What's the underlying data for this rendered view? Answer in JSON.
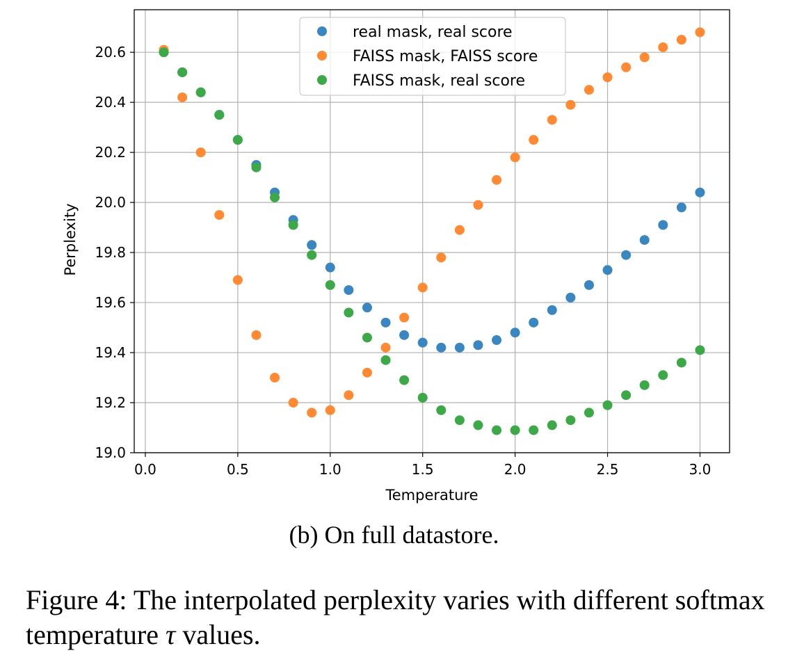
{
  "chart_data": {
    "type": "scatter",
    "title": "",
    "xlabel": "Temperature",
    "ylabel": "Perplexity",
    "xlim": [
      -0.06,
      3.16
    ],
    "ylim": [
      19.0,
      20.77
    ],
    "xticks": [
      "0.0",
      "0.5",
      "1.0",
      "1.5",
      "2.0",
      "2.5",
      "3.0"
    ],
    "xtick_values": [
      0.0,
      0.5,
      1.0,
      1.5,
      2.0,
      2.5,
      3.0
    ],
    "yticks": [
      "19.0",
      "19.2",
      "19.4",
      "19.6",
      "19.8",
      "20.0",
      "20.2",
      "20.4",
      "20.6"
    ],
    "ytick_values": [
      19.0,
      19.2,
      19.4,
      19.6,
      19.8,
      20.0,
      20.2,
      20.4,
      20.6
    ],
    "grid": true,
    "legend_position": "top-center",
    "x": [
      0.1,
      0.2,
      0.3,
      0.4,
      0.5,
      0.6,
      0.7,
      0.8,
      0.9,
      1.0,
      1.1,
      1.2,
      1.3,
      1.4,
      1.5,
      1.6,
      1.7,
      1.8,
      1.9,
      2.0,
      2.1,
      2.2,
      2.3,
      2.4,
      2.5,
      2.6,
      2.7,
      2.8,
      2.9,
      3.0
    ],
    "series": [
      {
        "name": "real mask, real score",
        "color": "#3a86c0",
        "values": [
          20.6,
          20.52,
          20.44,
          20.35,
          20.25,
          20.15,
          20.04,
          19.93,
          19.83,
          19.74,
          19.65,
          19.58,
          19.52,
          19.47,
          19.44,
          19.42,
          19.42,
          19.43,
          19.45,
          19.48,
          19.52,
          19.57,
          19.62,
          19.67,
          19.73,
          19.79,
          19.85,
          19.91,
          19.98,
          20.04
        ]
      },
      {
        "name": "FAISS mask, FAISS score",
        "color": "#ff8a33",
        "values": [
          20.61,
          20.42,
          20.2,
          19.95,
          19.69,
          19.47,
          19.3,
          19.2,
          19.16,
          19.17,
          19.23,
          19.32,
          19.42,
          19.54,
          19.66,
          19.78,
          19.89,
          19.99,
          20.09,
          20.18,
          20.25,
          20.33,
          20.39,
          20.45,
          20.5,
          20.54,
          20.58,
          20.62,
          20.65,
          20.68
        ]
      },
      {
        "name": "FAISS mask, real score",
        "color": "#3da847",
        "values": [
          20.6,
          20.52,
          20.44,
          20.35,
          20.25,
          20.14,
          20.02,
          19.91,
          19.79,
          19.67,
          19.56,
          19.46,
          19.37,
          19.29,
          19.22,
          19.17,
          19.13,
          19.11,
          19.09,
          19.09,
          19.09,
          19.11,
          19.13,
          19.16,
          19.19,
          19.23,
          19.27,
          19.31,
          19.36,
          19.41
        ]
      }
    ]
  },
  "captions": {
    "subcaption": "(b) On full datastore.",
    "figure_prefix": "Figure 4: The interpolated perplexity varies with different softmax temperature ",
    "tau_symbol": "τ",
    "figure_suffix": " values."
  }
}
